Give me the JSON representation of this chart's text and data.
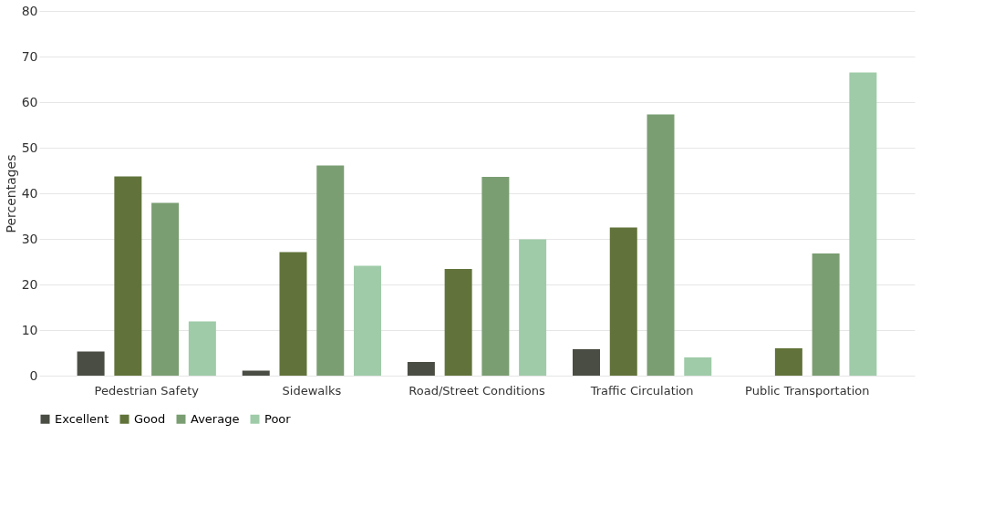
{
  "chart_data": {
    "type": "bar",
    "ylabel": "Percentages",
    "categories": [
      "Pedestrian Safety",
      "Sidewalks",
      "Road/Street Conditions",
      "Traffic Circulation",
      "Public Transportation"
    ],
    "series": [
      {
        "name": "Excellent",
        "color": "#4a4d44",
        "values": [
          5.3,
          1.1,
          3,
          5.8,
          null
        ]
      },
      {
        "name": "Good",
        "color": "#61733a",
        "values": [
          43.7,
          27.1,
          23.4,
          32.5,
          6
        ]
      },
      {
        "name": "Average",
        "color": "#7a9e72",
        "values": [
          37.9,
          46.1,
          43.6,
          57.3,
          26.8
        ]
      },
      {
        "name": "Poor",
        "color": "#9fcba8",
        "values": [
          11.9,
          24.1,
          29.9,
          4,
          66.5
        ]
      }
    ],
    "ylim": [
      0,
      80
    ],
    "yticks": [
      0,
      10,
      20,
      30,
      40,
      50,
      60,
      70,
      80
    ],
    "grid": "y",
    "legend": "bottom"
  }
}
